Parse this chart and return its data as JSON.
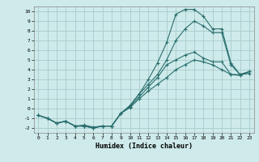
{
  "xlabel": "Humidex (Indice chaleur)",
  "background_color": "#ceeaea",
  "grid_color": "#a8cccc",
  "line_color": "#2a6e6e",
  "xlim": [
    -0.5,
    23.5
  ],
  "ylim": [
    -2.5,
    10.5
  ],
  "xticks": [
    0,
    1,
    2,
    3,
    4,
    5,
    6,
    7,
    8,
    9,
    10,
    11,
    12,
    13,
    14,
    15,
    16,
    17,
    18,
    19,
    20,
    21,
    22,
    23
  ],
  "yticks": [
    -2,
    -1,
    0,
    1,
    2,
    3,
    4,
    5,
    6,
    7,
    8,
    9,
    10
  ],
  "line1_x": [
    0,
    1,
    2,
    3,
    4,
    5,
    6,
    7,
    8,
    9,
    10,
    11,
    12,
    13,
    14,
    15,
    16,
    17,
    18,
    19,
    20,
    21,
    22,
    23
  ],
  "line1_y": [
    -0.7,
    -1.0,
    -1.5,
    -1.3,
    -1.8,
    -1.8,
    -2.0,
    -1.8,
    -1.8,
    -0.5,
    0.3,
    1.5,
    3.0,
    4.7,
    6.8,
    9.7,
    10.2,
    10.2,
    9.5,
    8.2,
    8.2,
    4.7,
    3.5,
    3.6
  ],
  "line2_x": [
    0,
    1,
    2,
    3,
    4,
    5,
    6,
    7,
    8,
    9,
    10,
    11,
    12,
    13,
    14,
    15,
    16,
    17,
    18,
    19,
    20,
    21,
    22,
    23
  ],
  "line2_y": [
    -0.7,
    -1.0,
    -1.5,
    -1.3,
    -1.8,
    -1.8,
    -2.0,
    -1.8,
    -1.8,
    -0.5,
    0.3,
    1.5,
    2.5,
    3.5,
    5.0,
    7.0,
    8.2,
    9.0,
    8.5,
    7.8,
    7.8,
    4.5,
    3.5,
    3.8
  ],
  "line3_x": [
    0,
    1,
    2,
    3,
    4,
    5,
    6,
    7,
    8,
    9,
    10,
    11,
    12,
    13,
    14,
    15,
    16,
    17,
    18,
    19,
    20,
    21,
    22,
    23
  ],
  "line3_y": [
    -0.7,
    -1.0,
    -1.5,
    -1.3,
    -1.8,
    -1.7,
    -1.9,
    -1.8,
    -1.8,
    -0.5,
    0.2,
    1.2,
    2.2,
    3.2,
    4.5,
    5.0,
    5.5,
    5.8,
    5.2,
    4.8,
    4.8,
    3.5,
    3.4,
    3.8
  ],
  "line4_x": [
    0,
    1,
    2,
    3,
    4,
    5,
    6,
    7,
    8,
    9,
    10,
    11,
    12,
    13,
    14,
    15,
    16,
    17,
    18,
    19,
    20,
    21,
    22,
    23
  ],
  "line4_y": [
    -0.7,
    -1.0,
    -1.5,
    -1.3,
    -1.8,
    -1.8,
    -2.0,
    -1.8,
    -1.8,
    -0.5,
    0.1,
    1.0,
    1.8,
    2.5,
    3.2,
    4.0,
    4.5,
    5.0,
    4.8,
    4.5,
    4.0,
    3.5,
    3.5,
    3.8
  ]
}
